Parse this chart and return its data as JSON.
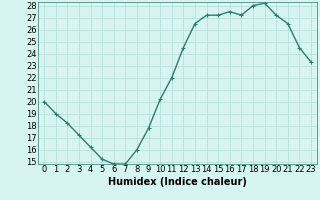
{
  "x": [
    0,
    1,
    2,
    3,
    4,
    5,
    6,
    7,
    8,
    9,
    10,
    11,
    12,
    13,
    14,
    15,
    16,
    17,
    18,
    19,
    20,
    21,
    22,
    23
  ],
  "y": [
    20,
    19,
    18.2,
    17.2,
    16.2,
    15.2,
    14.8,
    14.8,
    16.0,
    17.8,
    20.2,
    22.0,
    24.5,
    26.5,
    27.2,
    27.2,
    27.5,
    27.2,
    28.0,
    28.2,
    27.2,
    26.5,
    24.5,
    23.3
  ],
  "line_color": "#2e7d6e",
  "marker": "+",
  "bg_color": "#d6f5f0",
  "grid_color": "#b8e0da",
  "xlabel": "Humidex (Indice chaleur)",
  "xlabel_fontsize": 7,
  "ylim": [
    15,
    28
  ],
  "xlim": [
    -0.5,
    23.5
  ],
  "yticks": [
    15,
    16,
    17,
    18,
    19,
    20,
    21,
    22,
    23,
    24,
    25,
    26,
    27,
    28
  ],
  "xticks": [
    0,
    1,
    2,
    3,
    4,
    5,
    6,
    7,
    8,
    9,
    10,
    11,
    12,
    13,
    14,
    15,
    16,
    17,
    18,
    19,
    20,
    21,
    22,
    23
  ],
  "tick_fontsize": 6,
  "line_width": 1.0,
  "marker_size": 3,
  "spine_color": "#2e7d6e"
}
